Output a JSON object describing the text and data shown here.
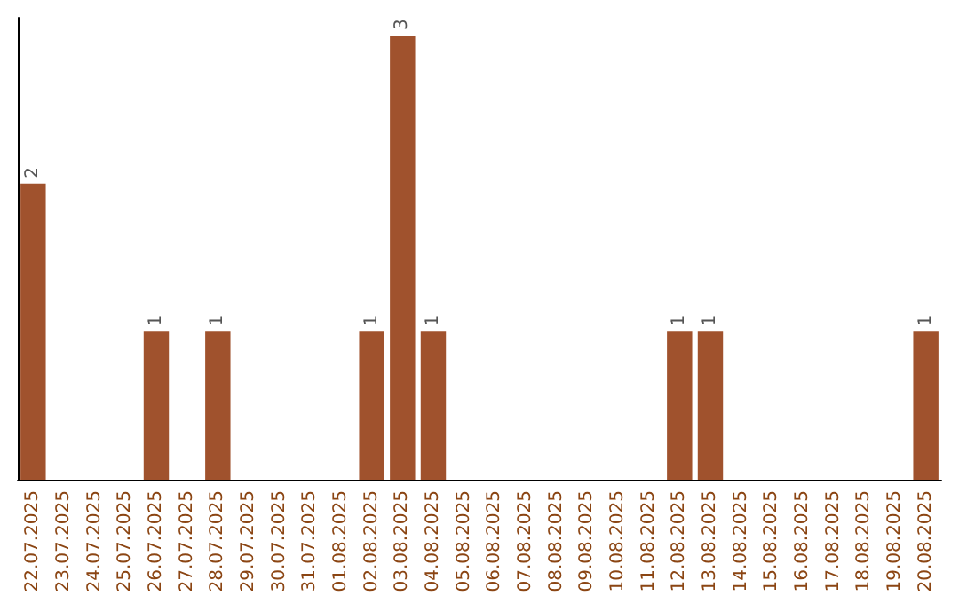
{
  "chart_data": {
    "type": "bar",
    "categories": [
      "22.07.2025",
      "23.07.2025",
      "24.07.2025",
      "25.07.2025",
      "26.07.2025",
      "27.07.2025",
      "28.07.2025",
      "29.07.2025",
      "30.07.2025",
      "31.07.2025",
      "01.08.2025",
      "02.08.2025",
      "03.08.2025",
      "04.08.2025",
      "05.08.2025",
      "06.08.2025",
      "07.08.2025",
      "08.08.2025",
      "09.08.2025",
      "10.08.2025",
      "11.08.2025",
      "12.08.2025",
      "13.08.2025",
      "14.08.2025",
      "15.08.2025",
      "16.08.2025",
      "17.08.2025",
      "18.08.2025",
      "19.08.2025",
      "20.08.2025"
    ],
    "values": [
      2,
      0,
      0,
      0,
      1,
      0,
      1,
      0,
      0,
      0,
      0,
      1,
      3,
      1,
      0,
      0,
      0,
      0,
      0,
      0,
      0,
      1,
      1,
      0,
      0,
      0,
      0,
      0,
      0,
      1
    ],
    "value_labels": [
      "2",
      null,
      null,
      null,
      "1",
      null,
      "1",
      null,
      null,
      null,
      null,
      "1",
      "3",
      "1",
      null,
      null,
      null,
      null,
      null,
      null,
      null,
      "1",
      "1",
      null,
      null,
      null,
      null,
      null,
      null,
      "1"
    ],
    "color": "#a0522d",
    "grid": false,
    "tick_labels": "x"
  }
}
